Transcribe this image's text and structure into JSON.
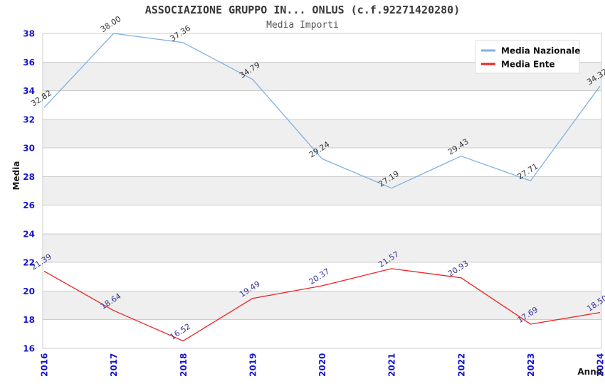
{
  "page": {
    "background": "#ffffff"
  },
  "chart_data": {
    "type": "line",
    "title": "ASSOCIAZIONE GRUPPO IN... ONLUS (c.f.92271420280)",
    "subtitle": "Media Importi",
    "xlabel": "Anno",
    "ylabel": "Media",
    "x_categories": [
      "2016",
      "2017",
      "2018",
      "2019",
      "2020",
      "2021",
      "2022",
      "2023",
      "2024"
    ],
    "yticks": [
      16,
      18,
      20,
      22,
      24,
      26,
      28,
      30,
      32,
      34,
      36,
      38
    ],
    "ylim": [
      16,
      38
    ],
    "grid": "horizontal-only",
    "band_fill": "#efefef",
    "grid_color": "#cccccc",
    "frame_color": "#cccccc",
    "tick_label_color": "#1515cc",
    "legend_position": "top-right",
    "series": [
      {
        "name": "Media Nazionale",
        "color": "#7eb1e3",
        "label_color": "#333333",
        "values": [
          32.82,
          38.0,
          37.36,
          34.79,
          29.24,
          27.19,
          29.43,
          27.71,
          34.32
        ]
      },
      {
        "name": "Media Ente",
        "color": "#ee2222",
        "label_color": "#333399",
        "values": [
          21.39,
          18.64,
          16.52,
          19.49,
          20.37,
          21.57,
          20.93,
          17.69,
          18.5
        ]
      }
    ]
  }
}
